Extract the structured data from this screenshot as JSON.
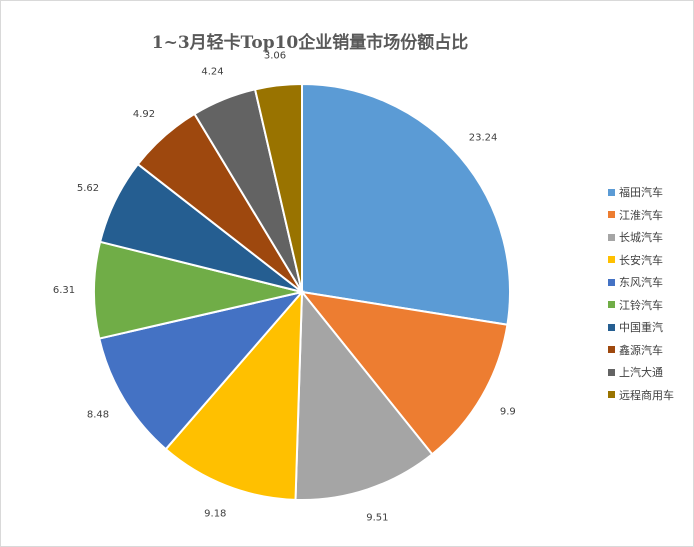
{
  "chart_data": {
    "type": "pie",
    "title": "1~3月轻卡Top10企业销量市场份额占比",
    "categories": [
      "福田汽车",
      "江淮汽车",
      "长城汽车",
      "长安汽车",
      "东风汽车",
      "江铃汽车",
      "中国重汽",
      "鑫源汽车",
      "上汽大通",
      "远程商用车"
    ],
    "values": [
      23.24,
      9.9,
      9.51,
      9.18,
      8.48,
      6.31,
      5.62,
      4.92,
      4.24,
      3.06
    ],
    "value_labels": [
      "23.24",
      "9.9",
      "9.51",
      "9.18",
      "8.48",
      "6.31",
      "5.62",
      "4.92",
      "4.24",
      "3.06"
    ],
    "colors": [
      "#5B9BD5",
      "#ED7D31",
      "#A5A5A5",
      "#FFC000",
      "#4472C4",
      "#70AD47",
      "#255E91",
      "#9E480E",
      "#636363",
      "#997300"
    ],
    "legend_position": "right"
  }
}
